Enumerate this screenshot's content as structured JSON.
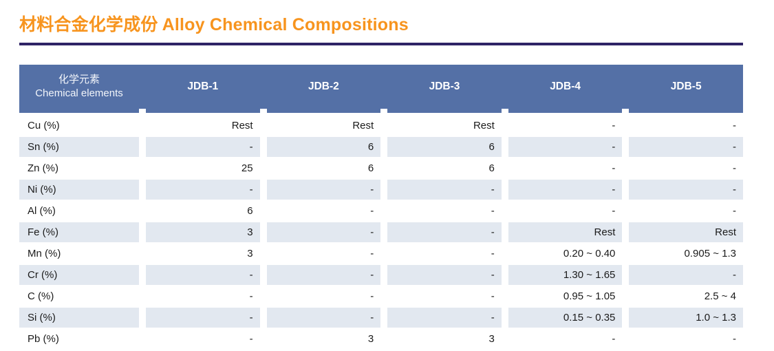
{
  "title": {
    "zh": "材料合金化学成份",
    "en": "Alloy Chemical Compositions"
  },
  "table": {
    "header": {
      "first_col_zh": "化学元素",
      "first_col_en": "Chemical elements",
      "columns": [
        "JDB-1",
        "JDB-2",
        "JDB-3",
        "JDB-4",
        "JDB-5"
      ]
    },
    "rows": [
      {
        "element": "Cu (%)",
        "values": [
          "Rest",
          "Rest",
          "Rest",
          "-",
          "-"
        ]
      },
      {
        "element": "Sn (%)",
        "values": [
          "-",
          "6",
          "6",
          "-",
          "-"
        ]
      },
      {
        "element": "Zn (%)",
        "values": [
          "25",
          "6",
          "6",
          "-",
          "-"
        ]
      },
      {
        "element": "Ni (%)",
        "values": [
          "-",
          "-",
          "-",
          "-",
          "-"
        ]
      },
      {
        "element": "Al (%)",
        "values": [
          "6",
          "-",
          "-",
          "-",
          "-"
        ]
      },
      {
        "element": "Fe (%)",
        "values": [
          "3",
          "-",
          "-",
          "Rest",
          "Rest"
        ]
      },
      {
        "element": "Mn (%)",
        "values": [
          "3",
          "-",
          "-",
          "0.20 ~ 0.40",
          "0.905 ~ 1.3"
        ]
      },
      {
        "element": "Cr (%)",
        "values": [
          "-",
          "-",
          "-",
          "1.30 ~ 1.65",
          "-"
        ]
      },
      {
        "element": "C (%)",
        "values": [
          "-",
          "-",
          "-",
          "0.95 ~ 1.05",
          "2.5 ~ 4"
        ]
      },
      {
        "element": "Si (%)",
        "values": [
          "-",
          "-",
          "-",
          "0.15 ~ 0.35",
          "1.0 ~ 1.3"
        ]
      },
      {
        "element": "Pb (%)",
        "values": [
          "-",
          "3",
          "3",
          "-",
          "-"
        ]
      }
    ]
  },
  "colors": {
    "title_orange": "#F7941E",
    "rule_navy": "#2F2366",
    "header_blue": "#5470A6",
    "row_shaded": "#E2E8F0",
    "text": "#1A1A1A"
  }
}
